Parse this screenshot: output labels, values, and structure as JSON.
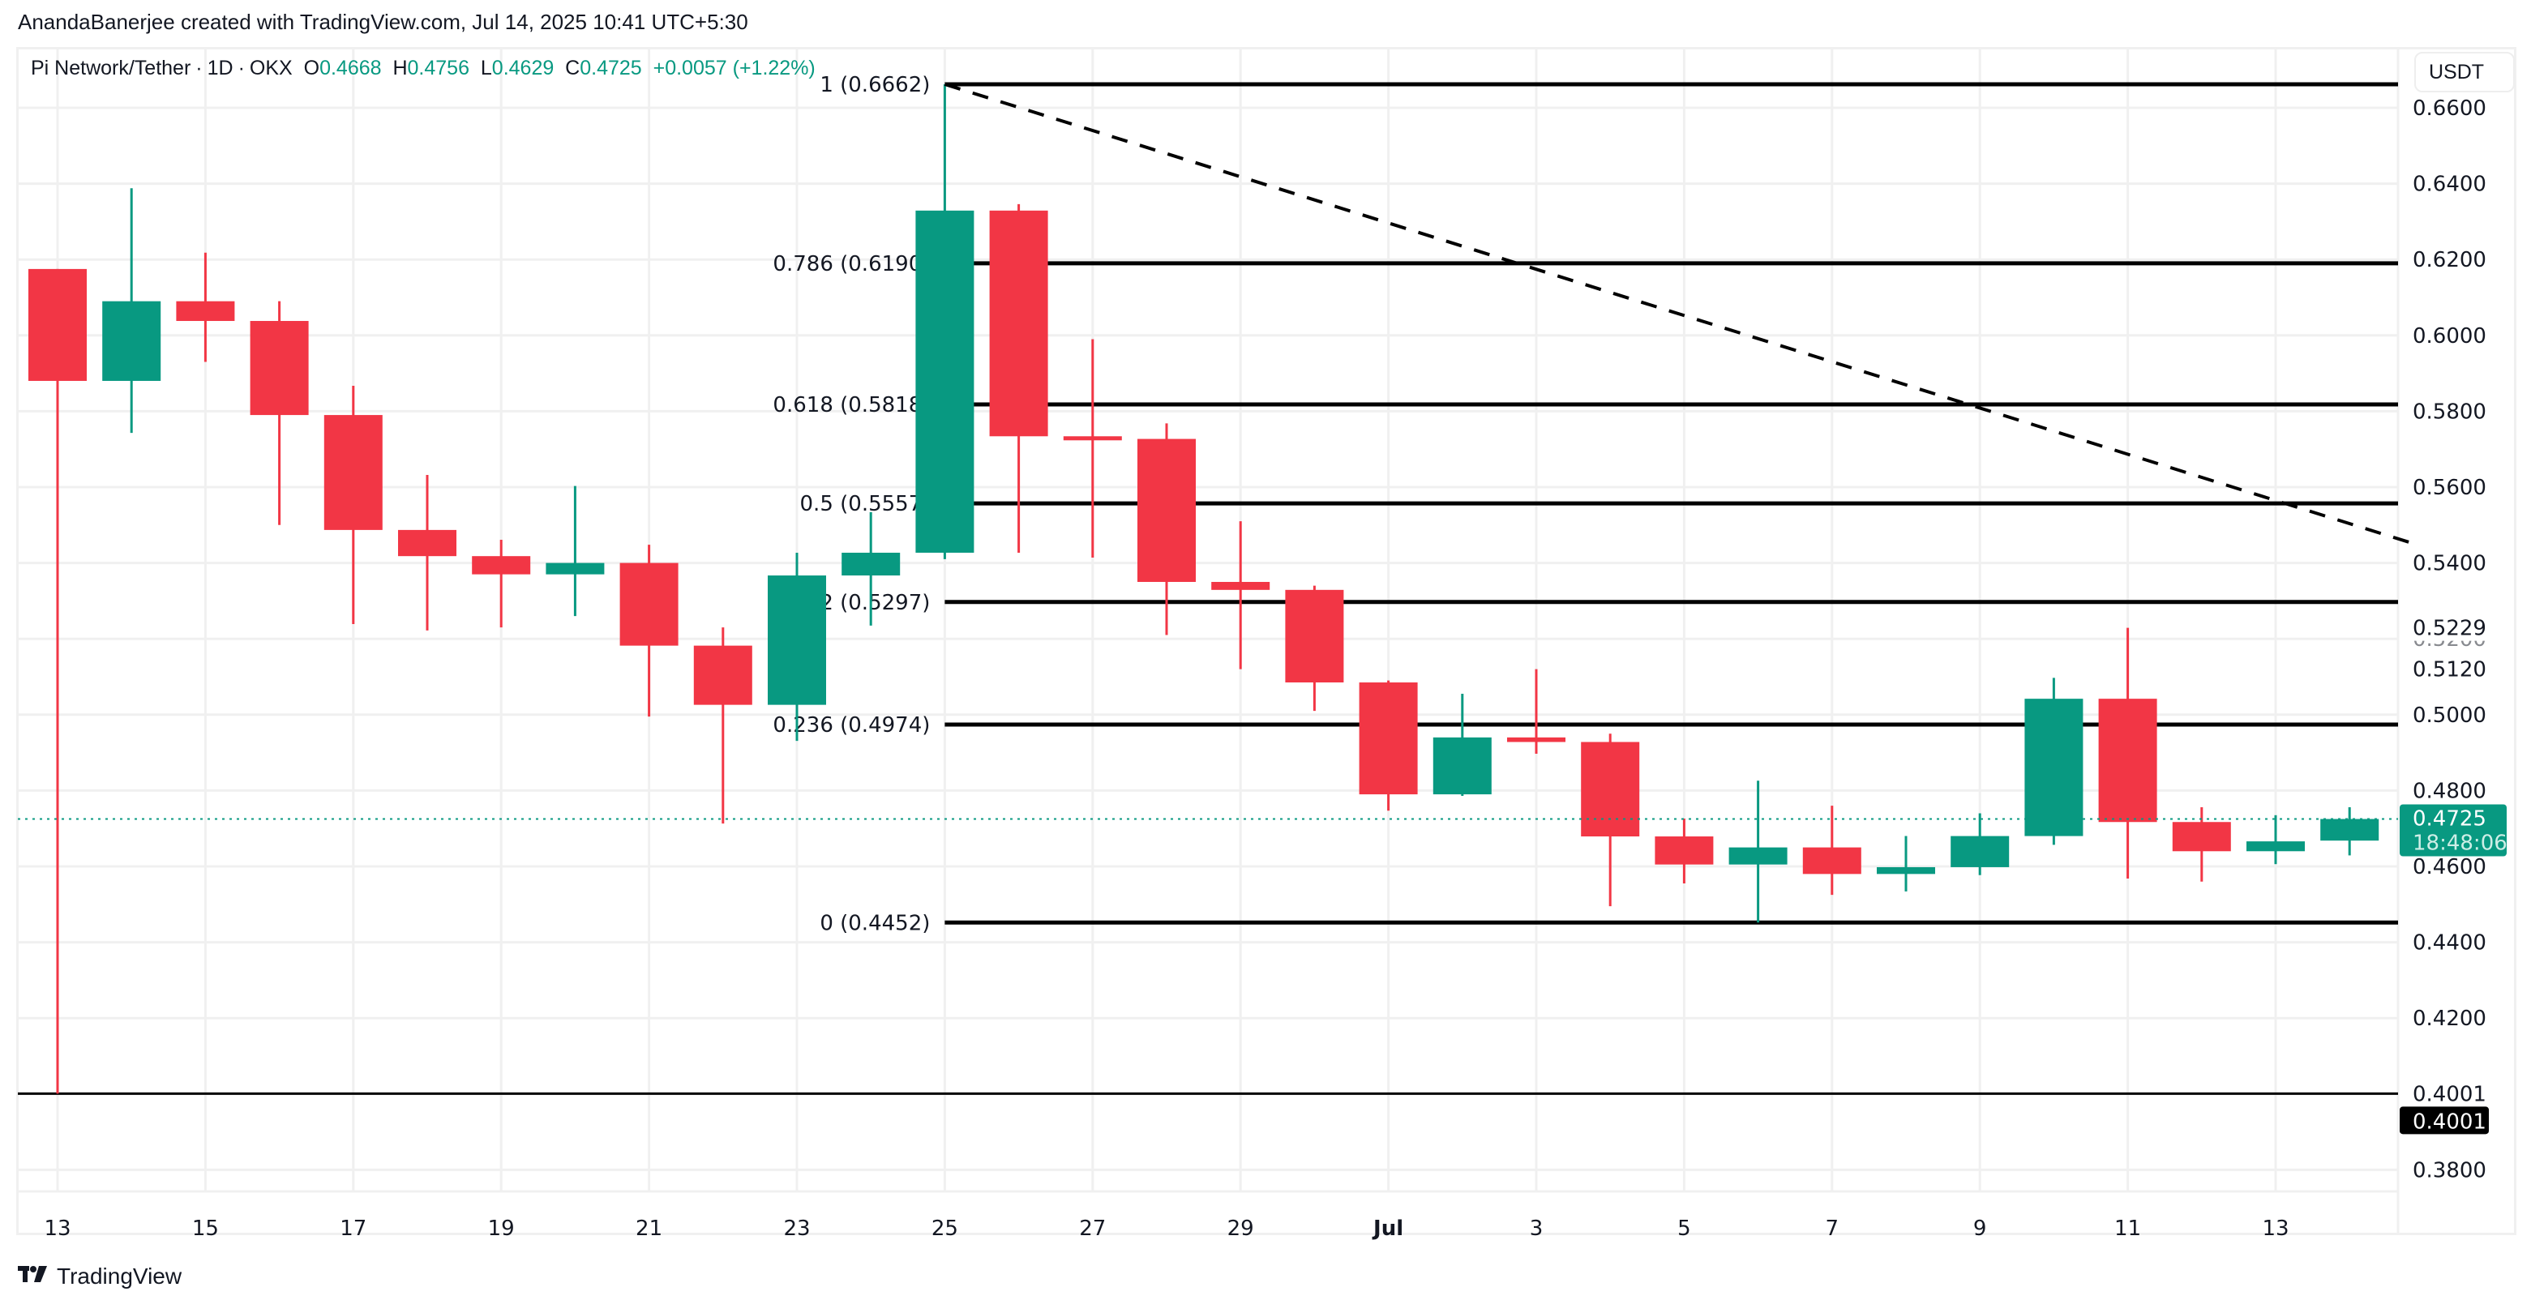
{
  "credit": "AnandaBanerjee created with TradingView.com, Jul 14, 2025 10:41 UTC+5:30",
  "legend": {
    "symbol": "Pi Network/Tether",
    "interval": "1D",
    "exchange": "OKX",
    "o_label": "O",
    "o": "0.4668",
    "h_label": "H",
    "h": "0.4756",
    "l_label": "L",
    "l": "0.4629",
    "c_label": "C",
    "c": "0.4725",
    "change": "+0.0057 (+1.22%)"
  },
  "currency_button": "USDT",
  "branding": "TradingView",
  "colors": {
    "up": "#089981",
    "down": "#F23645",
    "grid": "#F0F0F0",
    "fib": "#000000",
    "text": "#131722"
  },
  "chart_data": {
    "type": "candlestick",
    "title": "Pi Network/Tether · 1D · OKX",
    "xlabel": "",
    "ylabel": "USDT",
    "ylim": [
      0.371,
      0.677
    ],
    "y_ticks": [
      "0.6600",
      "0.6400",
      "0.6200",
      "0.6000",
      "0.5800",
      "0.5600",
      "0.5400",
      "0.5200",
      "0.5000",
      "0.4800",
      "0.4600",
      "0.4400",
      "0.4200",
      "0.3800"
    ],
    "x_ticks": [
      {
        "label": "13",
        "index": 0
      },
      {
        "label": "15",
        "index": 2
      },
      {
        "label": "17",
        "index": 4
      },
      {
        "label": "19",
        "index": 6
      },
      {
        "label": "21",
        "index": 8
      },
      {
        "label": "23",
        "index": 10
      },
      {
        "label": "25",
        "index": 12
      },
      {
        "label": "27",
        "index": 14
      },
      {
        "label": "29",
        "index": 16
      },
      {
        "label": "Jul",
        "index": 18,
        "bold": true
      },
      {
        "label": "3",
        "index": 20
      },
      {
        "label": "5",
        "index": 22
      },
      {
        "label": "7",
        "index": 24
      },
      {
        "label": "9",
        "index": 26
      },
      {
        "label": "11",
        "index": 28
      },
      {
        "label": "13",
        "index": 30
      }
    ],
    "candles": [
      {
        "date": "2025-06-13",
        "o": 0.6175,
        "h": 0.6175,
        "l": 0.4001,
        "c": 0.588
      },
      {
        "date": "2025-06-14",
        "o": 0.588,
        "h": 0.6388,
        "l": 0.5743,
        "c": 0.609
      },
      {
        "date": "2025-06-15",
        "o": 0.609,
        "h": 0.6218,
        "l": 0.593,
        "c": 0.6038
      },
      {
        "date": "2025-06-16",
        "o": 0.6038,
        "h": 0.609,
        "l": 0.55,
        "c": 0.579
      },
      {
        "date": "2025-06-17",
        "o": 0.579,
        "h": 0.5867,
        "l": 0.5239,
        "c": 0.5487
      },
      {
        "date": "2025-06-18",
        "o": 0.5487,
        "h": 0.5632,
        "l": 0.5222,
        "c": 0.5418
      },
      {
        "date": "2025-06-19",
        "o": 0.5418,
        "h": 0.5461,
        "l": 0.523,
        "c": 0.537
      },
      {
        "date": "2025-06-20",
        "o": 0.537,
        "h": 0.5603,
        "l": 0.526,
        "c": 0.54
      },
      {
        "date": "2025-06-21",
        "o": 0.54,
        "h": 0.5448,
        "l": 0.4995,
        "c": 0.5182
      },
      {
        "date": "2025-06-22",
        "o": 0.5182,
        "h": 0.523,
        "l": 0.4713,
        "c": 0.5026
      },
      {
        "date": "2025-06-23",
        "o": 0.5026,
        "h": 0.5427,
        "l": 0.4931,
        "c": 0.5367
      },
      {
        "date": "2025-06-24",
        "o": 0.5367,
        "h": 0.5534,
        "l": 0.5235,
        "c": 0.5427
      },
      {
        "date": "2025-06-25",
        "o": 0.5427,
        "h": 0.6662,
        "l": 0.541,
        "c": 0.6329
      },
      {
        "date": "2025-06-26",
        "o": 0.6329,
        "h": 0.6346,
        "l": 0.5427,
        "c": 0.5734
      },
      {
        "date": "2025-06-27",
        "o": 0.5734,
        "h": 0.599,
        "l": 0.5414,
        "c": 0.5727
      },
      {
        "date": "2025-06-28",
        "o": 0.5727,
        "h": 0.5768,
        "l": 0.521,
        "c": 0.535
      },
      {
        "date": "2025-06-29",
        "o": 0.535,
        "h": 0.551,
        "l": 0.512,
        "c": 0.5329
      },
      {
        "date": "2025-06-30",
        "o": 0.5329,
        "h": 0.534,
        "l": 0.501,
        "c": 0.5085
      },
      {
        "date": "2025-07-01",
        "o": 0.5085,
        "h": 0.509,
        "l": 0.4747,
        "c": 0.479
      },
      {
        "date": "2025-07-02",
        "o": 0.479,
        "h": 0.5055,
        "l": 0.4786,
        "c": 0.494
      },
      {
        "date": "2025-07-03",
        "o": 0.494,
        "h": 0.512,
        "l": 0.4897,
        "c": 0.4928
      },
      {
        "date": "2025-07-04",
        "o": 0.4928,
        "h": 0.495,
        "l": 0.4495,
        "c": 0.4679
      },
      {
        "date": "2025-07-05",
        "o": 0.4679,
        "h": 0.4726,
        "l": 0.4555,
        "c": 0.4605
      },
      {
        "date": "2025-07-06",
        "o": 0.4605,
        "h": 0.4826,
        "l": 0.4452,
        "c": 0.465
      },
      {
        "date": "2025-07-07",
        "o": 0.465,
        "h": 0.476,
        "l": 0.4525,
        "c": 0.458
      },
      {
        "date": "2025-07-08",
        "o": 0.458,
        "h": 0.468,
        "l": 0.4534,
        "c": 0.4598
      },
      {
        "date": "2025-07-09",
        "o": 0.4598,
        "h": 0.474,
        "l": 0.4577,
        "c": 0.468
      },
      {
        "date": "2025-07-10",
        "o": 0.468,
        "h": 0.5097,
        "l": 0.4657,
        "c": 0.5042
      },
      {
        "date": "2025-07-11",
        "o": 0.5042,
        "h": 0.5229,
        "l": 0.4568,
        "c": 0.4717
      },
      {
        "date": "2025-07-12",
        "o": 0.4717,
        "h": 0.4756,
        "l": 0.456,
        "c": 0.464
      },
      {
        "date": "2025-07-13",
        "o": 0.464,
        "h": 0.4735,
        "l": 0.4606,
        "c": 0.4666
      },
      {
        "date": "2025-07-14",
        "o": 0.4668,
        "h": 0.4756,
        "l": 0.4629,
        "c": 0.4725
      }
    ],
    "fib_levels": [
      {
        "ratio": "1",
        "price": 0.6662,
        "label": "1 (0.6662)"
      },
      {
        "ratio": "0.786",
        "price": 0.619,
        "label": "0.786 (0.6190)"
      },
      {
        "ratio": "0.618",
        "price": 0.5818,
        "label": "0.618 (0.5818)"
      },
      {
        "ratio": "0.5",
        "price": 0.5557,
        "label": "0.5 (0.5557)"
      },
      {
        "ratio": "0.382",
        "price": 0.5297,
        "label": "0.382 (0.5297)"
      },
      {
        "ratio": "0.236",
        "price": 0.4974,
        "label": "0.236 (0.4974)"
      },
      {
        "ratio": "0",
        "price": 0.4452,
        "label": "0 (0.4452)"
      }
    ],
    "support_line": {
      "price": 0.4001,
      "label": "0.4001"
    },
    "trendline": {
      "from": {
        "index": 12,
        "price": 0.6662
      },
      "to": {
        "index": 31.8,
        "price": 0.5455
      },
      "style": "dashed"
    },
    "axis_markers": [
      {
        "price": 0.5229,
        "label": "0.5229",
        "type": "text"
      },
      {
        "price": 0.512,
        "label": "0.5120",
        "type": "text"
      },
      {
        "price": 0.4001,
        "label": "0.4001",
        "type": "text"
      },
      {
        "price": 0.4001,
        "label": "0.4001",
        "type": "badge-black"
      },
      {
        "price": 0.4725,
        "label": "0.4725",
        "sublabel": "18:48:06",
        "type": "badge-green"
      }
    ],
    "last_price": 0.4725,
    "countdown": "18:48:06"
  }
}
